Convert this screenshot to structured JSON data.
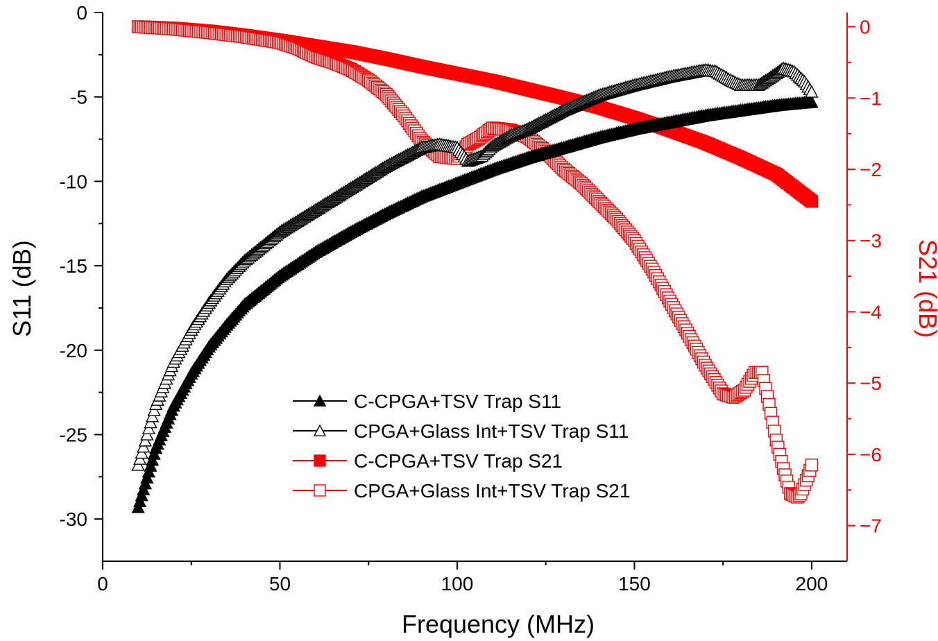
{
  "chart_data": {
    "type": "scatter",
    "xlabel": "Frequency (MHz)",
    "ylabel_left": "S11 (dB)",
    "ylabel_right": "S21 (dB)",
    "xlim": [
      0,
      210
    ],
    "ylim_left": [
      -32.5,
      0
    ],
    "ylim_right": [
      -7.5,
      0.2
    ],
    "x_ticks": [
      "0",
      "50",
      "100",
      "150",
      "200"
    ],
    "y_left_ticks": [
      "0",
      "-5",
      "-10",
      "-15",
      "-20",
      "-25",
      "-30"
    ],
    "y_right_ticks": [
      "0",
      "-1",
      "-2",
      "-3",
      "-4",
      "-5",
      "-6",
      "-7"
    ],
    "grid": false,
    "legend_position": "lower-center",
    "colors": {
      "s11": "#000000",
      "s21": "#ff0000"
    },
    "series": [
      {
        "name": "C-CPGA+TSV Trap S11",
        "axis": "left",
        "color": "#000000",
        "marker": "triangle-filled",
        "x": [
          10,
          15,
          20,
          25,
          30,
          35,
          40,
          50,
          60,
          70,
          80,
          90,
          100,
          110,
          120,
          130,
          140,
          150,
          160,
          170,
          180,
          190,
          200
        ],
        "y": [
          -29.3,
          -25.8,
          -23.3,
          -21.4,
          -19.8,
          -18.5,
          -17.3,
          -15.6,
          -14.2,
          -13.0,
          -11.9,
          -10.9,
          -10.1,
          -9.3,
          -8.6,
          -8.0,
          -7.4,
          -6.9,
          -6.5,
          -6.1,
          -5.8,
          -5.5,
          -5.3
        ]
      },
      {
        "name": "CPGA+Glass Int+TSV Trap S11",
        "axis": "left",
        "color": "#000000",
        "marker": "triangle-open",
        "x": [
          10,
          15,
          20,
          25,
          30,
          35,
          40,
          50,
          60,
          70,
          80,
          90,
          95,
          100,
          103,
          107,
          110,
          115,
          120,
          130,
          140,
          150,
          160,
          165,
          170,
          173,
          177,
          180,
          185,
          188,
          192,
          195,
          198,
          200
        ],
        "y": [
          -26.8,
          -23.2,
          -20.7,
          -18.8,
          -17.2,
          -15.8,
          -14.7,
          -13.0,
          -11.7,
          -10.4,
          -9.1,
          -8.0,
          -7.8,
          -8.0,
          -8.8,
          -8.5,
          -7.9,
          -7.3,
          -6.9,
          -5.8,
          -4.9,
          -4.3,
          -3.8,
          -3.6,
          -3.4,
          -3.5,
          -4.0,
          -4.3,
          -4.3,
          -3.9,
          -3.3,
          -3.5,
          -4.1,
          -4.7
        ]
      },
      {
        "name": "C-CPGA+TSV Trap S21",
        "axis": "right",
        "color": "#ff0000",
        "marker": "square-filled",
        "x": [
          10,
          20,
          30,
          40,
          50,
          60,
          70,
          80,
          90,
          100,
          110,
          120,
          130,
          140,
          150,
          160,
          170,
          180,
          190,
          200
        ],
        "y": [
          0.0,
          -0.02,
          -0.06,
          -0.12,
          -0.19,
          -0.27,
          -0.35,
          -0.45,
          -0.56,
          -0.66,
          -0.76,
          -0.88,
          -1.0,
          -1.13,
          -1.28,
          -1.45,
          -1.63,
          -1.84,
          -2.07,
          -2.45
        ]
      },
      {
        "name": "CPGA+Glass Int+TSV Trap S21",
        "axis": "right",
        "color": "#ff0000",
        "marker": "square-open",
        "x": [
          10,
          20,
          30,
          40,
          50,
          55,
          60,
          65,
          70,
          75,
          80,
          85,
          90,
          95,
          100,
          103,
          106,
          110,
          115,
          120,
          125,
          130,
          135,
          140,
          145,
          150,
          155,
          160,
          165,
          170,
          175,
          178,
          181,
          184,
          186,
          188,
          190,
          192,
          194,
          196,
          197,
          199,
          200
        ],
        "y": [
          0.0,
          -0.03,
          -0.08,
          -0.14,
          -0.22,
          -0.3,
          -0.42,
          -0.5,
          -0.6,
          -0.75,
          -0.95,
          -1.25,
          -1.6,
          -1.82,
          -1.85,
          -1.65,
          -1.57,
          -1.42,
          -1.45,
          -1.55,
          -1.75,
          -2.0,
          -2.2,
          -2.45,
          -2.7,
          -3.0,
          -3.4,
          -3.85,
          -4.3,
          -4.75,
          -5.15,
          -5.2,
          -5.1,
          -4.85,
          -4.85,
          -5.3,
          -5.8,
          -6.2,
          -6.55,
          -6.6,
          -6.55,
          -6.3,
          -6.15
        ]
      }
    ]
  }
}
